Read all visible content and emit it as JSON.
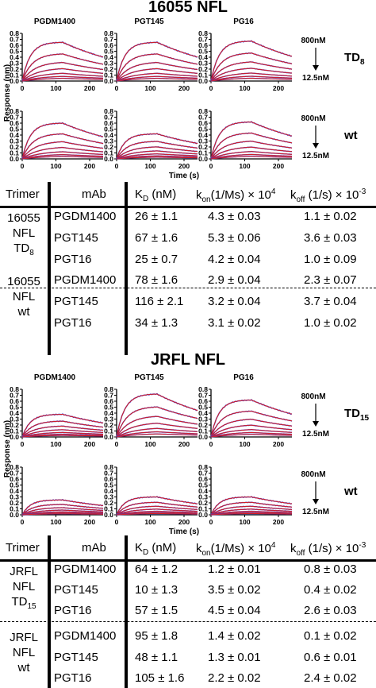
{
  "sections": [
    {
      "title": "16055 NFL",
      "panel_titles": [
        "PGDM1400",
        "PGT145",
        "PG16"
      ],
      "row_labels": [
        {
          "name": "TD",
          "sub": "8"
        },
        {
          "name": "wt",
          "sub": ""
        }
      ],
      "conc_top": "800nM",
      "conc_bottom": "12.5nM",
      "ylabel": "Response (nm)",
      "xlabel": "Time (s)",
      "yticks": [
        "0.0",
        "0.1",
        "0.2",
        "0.3",
        "0.4",
        "0.5",
        "0.6",
        "0.7",
        "0.8"
      ],
      "xticks": [
        "0",
        "100",
        "200"
      ]
    },
    {
      "title": "JRFL NFL",
      "panel_titles": [
        "PGDM1400",
        "PGT145",
        "PG16"
      ],
      "row_labels": [
        {
          "name": "TD",
          "sub": "15"
        },
        {
          "name": "wt",
          "sub": ""
        }
      ],
      "conc_top": "800nM",
      "conc_bottom": "12.5nM",
      "ylabel": "Response (nm)",
      "xlabel": "Time (s)",
      "yticks": [
        "0.0",
        "0.1",
        "0.2",
        "0.3",
        "0.4",
        "0.5",
        "0.6",
        "0.7",
        "0.8"
      ],
      "xticks": [
        "0",
        "100",
        "200"
      ]
    }
  ],
  "chart_data": [
    {
      "type": "line",
      "title": "16055 NFL",
      "xlabel": "Time (s)",
      "ylabel": "Response (nm)",
      "xlim": [
        0,
        240
      ],
      "ylim": [
        0,
        0.8
      ],
      "association_end_s": 120,
      "series_colors": {
        "data": "#3a3ad8",
        "fit": "#d81e1e"
      },
      "panels": [
        {
          "mAb": "PGDM1400",
          "trimer": "TD8",
          "max_response_at_800nM": 0.65
        },
        {
          "mAb": "PGT145",
          "trimer": "TD8",
          "max_response_at_800nM": 0.65
        },
        {
          "mAb": "PG16",
          "trimer": "TD8",
          "max_response_at_800nM": 0.67
        },
        {
          "mAb": "PGDM1400",
          "trimer": "wt",
          "max_response_at_800nM": 0.6
        },
        {
          "mAb": "PGT145",
          "trimer": "wt",
          "max_response_at_800nM": 0.42
        },
        {
          "mAb": "PG16",
          "trimer": "wt",
          "max_response_at_800nM": 0.62
        }
      ]
    },
    {
      "type": "line",
      "title": "JRFL NFL",
      "xlabel": "Time (s)",
      "ylabel": "Response (nm)",
      "xlim": [
        0,
        240
      ],
      "ylim": [
        0,
        0.8
      ],
      "association_end_s": 120,
      "series_colors": {
        "data": "#3a3ad8",
        "fit": "#d81e1e"
      },
      "panels": [
        {
          "mAb": "PGDM1400",
          "trimer": "TD15",
          "max_response_at_800nM": 0.38
        },
        {
          "mAb": "PGT145",
          "trimer": "TD15",
          "max_response_at_800nM": 0.72
        },
        {
          "mAb": "PG16",
          "trimer": "TD15",
          "max_response_at_800nM": 0.62
        },
        {
          "mAb": "PGDM1400",
          "trimer": "wt",
          "max_response_at_800nM": 0.25
        },
        {
          "mAb": "PGT145",
          "trimer": "wt",
          "max_response_at_800nM": 0.3
        },
        {
          "mAb": "PG16",
          "trimer": "wt",
          "max_response_at_800nM": 0.3
        }
      ]
    },
    {
      "type": "table",
      "columns": [
        "Trimer",
        "mAb",
        "K_D (nM)",
        "k_on (1/Ms) × 10^4",
        "k_off (1/s) × 10^-3"
      ],
      "groups": [
        {
          "trimer_lines": [
            "16055",
            "NFL",
            "TD8"
          ],
          "rows": [
            {
              "mab": "PGDM1400",
              "kd": "26 ± 1.1",
              "kon": "4.3 ± 0.03",
              "koff": "1.1 ± 0.02"
            },
            {
              "mab": "PGT145",
              "kd": "67 ± 1.6",
              "kon": "5.3  ± 0.06",
              "koff": "3.6 ± 0.03"
            },
            {
              "mab": "PGT16",
              "kd": "25 ± 0.7",
              "kon": "4.2 ± 0.04",
              "koff": "1.0 ± 0.09"
            }
          ]
        },
        {
          "trimer_lines": [
            "16055",
            "NFL",
            "wt"
          ],
          "rows": [
            {
              "mab": "PGDM1400",
              "kd": "78 ± 1.6",
              "kon": "2.9 ± 0.04",
              "koff": "2.3 ± 0.07"
            },
            {
              "mab": "PGT145",
              "kd": "116 ± 2.1",
              "kon": "3.2 ± 0.04",
              "koff": "3.7 ±  0.04"
            },
            {
              "mab": "PGT16",
              "kd": "34 ± 1.3",
              "kon": "3.1 ± 0.02",
              "koff": "1.0 ± 0.02"
            }
          ]
        }
      ]
    },
    {
      "type": "table",
      "columns": [
        "Trimer",
        "mAb",
        "K_D (nM)",
        "k_on (1/Ms) × 10^4",
        "k_off (1/s) × 10^-3"
      ],
      "groups": [
        {
          "trimer_lines": [
            "JRFL",
            "NFL",
            "TD15"
          ],
          "rows": [
            {
              "mab": "PGDM1400",
              "kd": "64 ± 1.2",
              "kon": "1.2  ± 0.01",
              "koff": "0.8 ± 0.03"
            },
            {
              "mab": "PGT145",
              "kd": "10 ± 1.3",
              "kon": "3.5 ± 0.02",
              "koff": "0.4 ± 0.02"
            },
            {
              "mab": "PGT16",
              "kd": "57 ± 1.5",
              "kon": "4.5 ± 0.04",
              "koff": "2.6 ± 0.03"
            }
          ]
        },
        {
          "trimer_lines": [
            "JRFL",
            "NFL",
            "wt"
          ],
          "rows": [
            {
              "mab": "PGDM1400",
              "kd": "95 ± 1.8",
              "kon": "1.4 ± 0.02",
              "koff": "0.1 ± 0.02"
            },
            {
              "mab": "PGT145",
              "kd": "48 ± 1.1",
              "kon": "1.3 ± 0.01",
              "koff": "0.6 ± 0.01"
            },
            {
              "mab": "PGT16",
              "kd": "105 ± 1.6",
              "kon": "2.2 ± 0.02",
              "koff": "2.4 ± 0.02"
            }
          ]
        }
      ]
    }
  ],
  "table_headers": {
    "trimer": "Trimer",
    "mab": "mAb",
    "kd_main": "K",
    "kd_sub": "D",
    "kd_unit": " (nM)",
    "kon_main": "k",
    "kon_sub": "on",
    "kon_unit": "(1/Ms) × 10",
    "kon_sup": "4",
    "koff_main": "k",
    "koff_sub": "off",
    "koff_unit": " (1/s) × 10",
    "koff_sup": "-3"
  }
}
